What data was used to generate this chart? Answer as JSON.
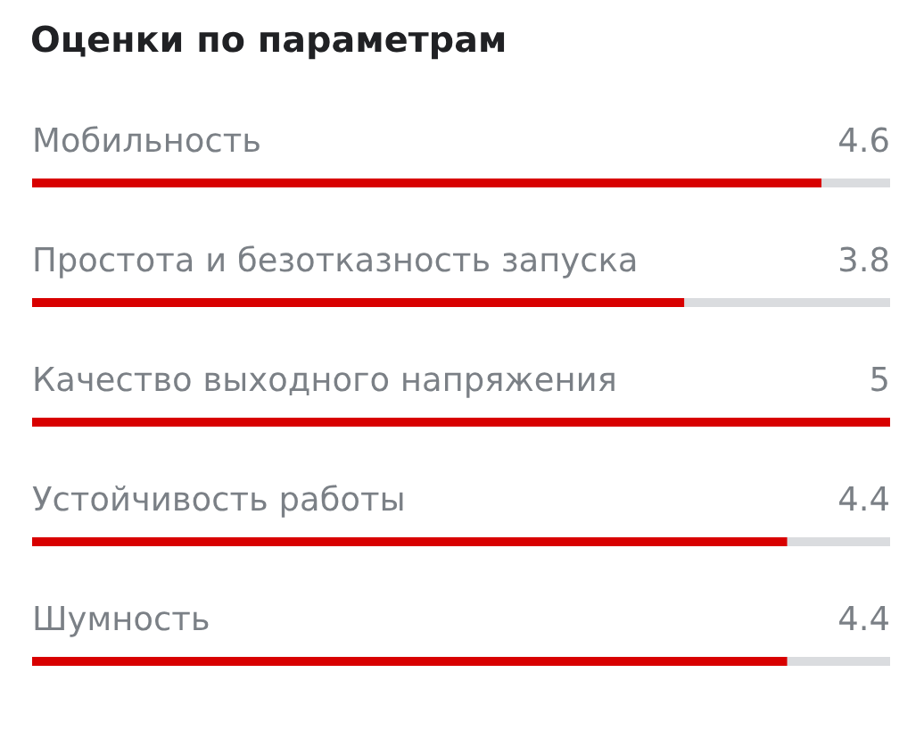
{
  "chart_data": {
    "type": "bar",
    "orientation": "horizontal",
    "title": "Оценки по параметрам",
    "categories": [
      "Мобильность",
      "Простота и безотказность запуска",
      "Качество выходного напряжения",
      "Устойчивость работы",
      "Шумность"
    ],
    "values": [
      4.6,
      3.8,
      5,
      4.4,
      4.4
    ],
    "color": "#d80000",
    "xlim": [
      0,
      5
    ],
    "data_labels": true,
    "tick_labels": "y"
  }
}
